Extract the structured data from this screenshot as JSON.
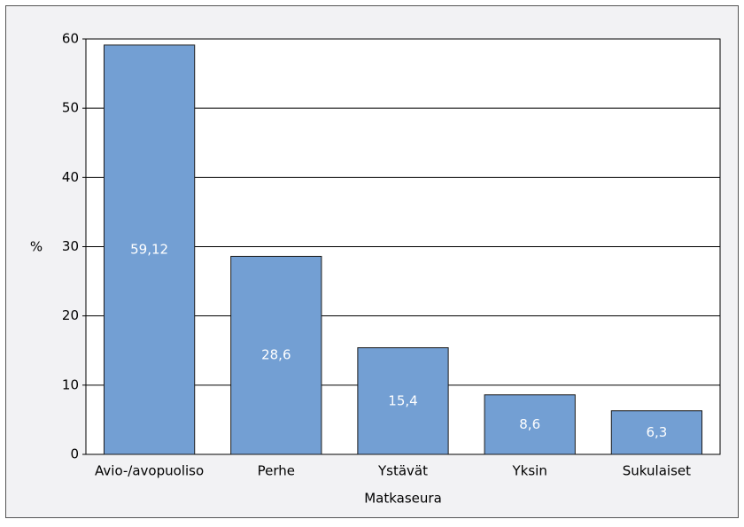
{
  "chart_data": {
    "type": "bar",
    "categories": [
      "Avio-/avopuoliso",
      "Perhe",
      "Ystävät",
      "Yksin",
      "Sukulaiset"
    ],
    "values": [
      59.12,
      28.6,
      15.4,
      8.6,
      6.3
    ],
    "value_labels": [
      "59,12",
      "28,6",
      "15,4",
      "8,6",
      "6,3"
    ],
    "color": "#739fd3",
    "x_label": "Matkaseura",
    "y_label": "%",
    "ylim": [
      0,
      60
    ],
    "yticks": [
      0,
      10,
      20,
      30,
      40,
      50,
      60
    ],
    "grid": true
  }
}
